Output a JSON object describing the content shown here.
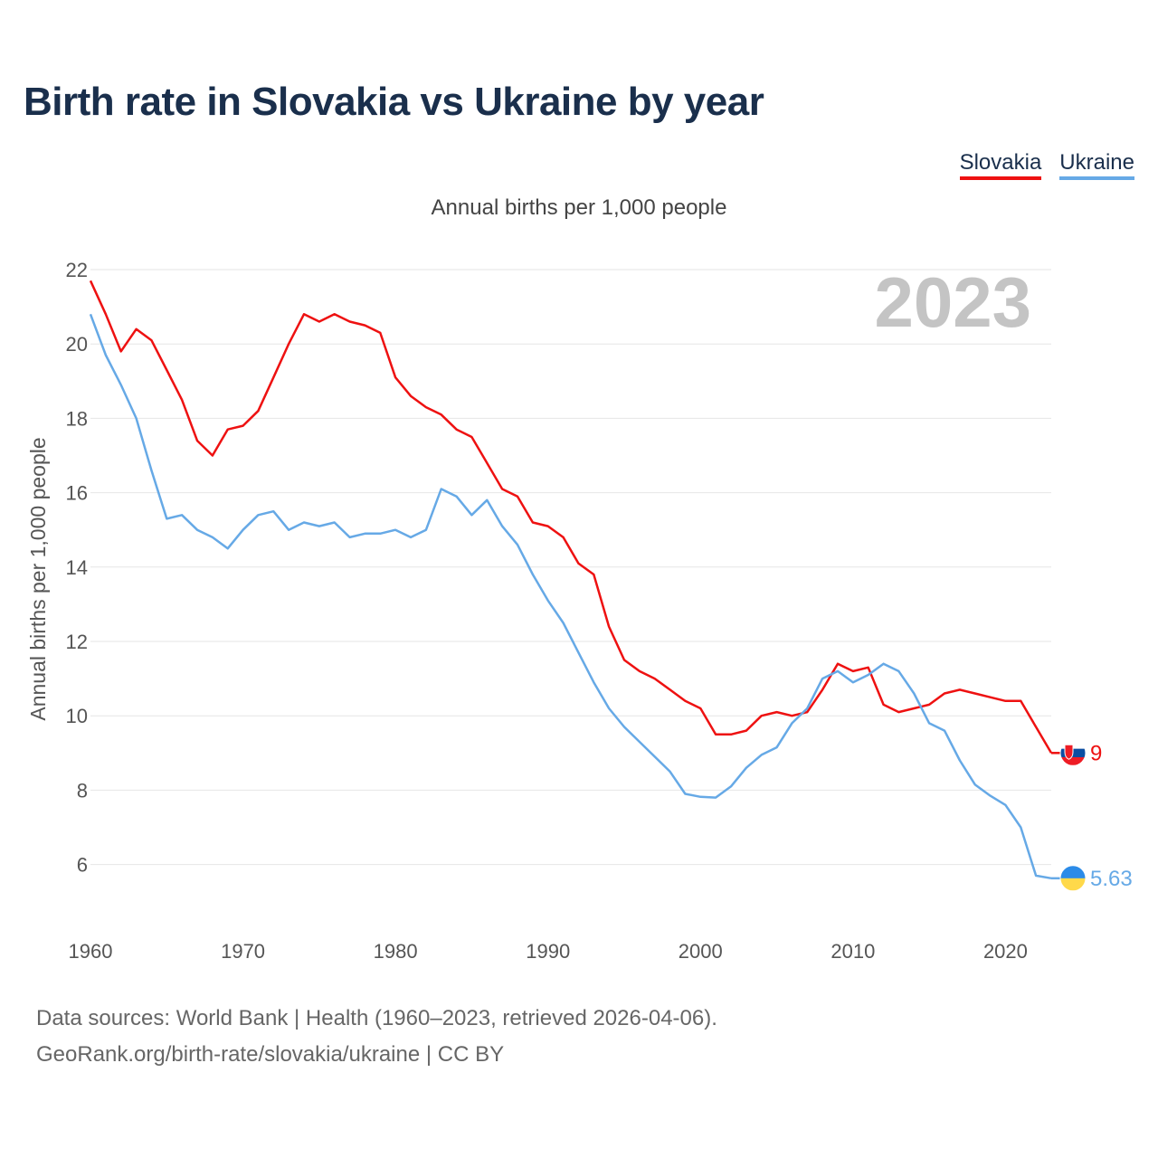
{
  "title": "Birth rate in Slovakia vs Ukraine by year",
  "subtitle": "Annual births per 1,000 people",
  "legend": {
    "items": [
      "Slovakia",
      "Ukraine"
    ]
  },
  "footer": {
    "line1": "Data sources: World Bank | Health (1960–2023, retrieved 2026-04-06).",
    "line2": "GeoRank.org/birth-rate/slovakia/ukraine | CC BY"
  },
  "chart_data": {
    "type": "line",
    "title": "Birth rate in Slovakia vs Ukraine by year",
    "subtitle": "Annual births per 1,000 people",
    "xlabel": "",
    "ylabel": "Annual births per 1,000 people",
    "year_label": "2023",
    "xlim": [
      1960,
      2023
    ],
    "ylim": [
      4.8,
      22.7
    ],
    "xticks": [
      1960,
      1970,
      1980,
      1990,
      2000,
      2010,
      2020
    ],
    "yticks": [
      6,
      8,
      10,
      12,
      14,
      16,
      18,
      20,
      22
    ],
    "grid": true,
    "legend_position": "top-right",
    "x": [
      1960,
      1961,
      1962,
      1963,
      1964,
      1965,
      1966,
      1967,
      1968,
      1969,
      1970,
      1971,
      1972,
      1973,
      1974,
      1975,
      1976,
      1977,
      1978,
      1979,
      1980,
      1981,
      1982,
      1983,
      1984,
      1985,
      1986,
      1987,
      1988,
      1989,
      1990,
      1991,
      1992,
      1993,
      1994,
      1995,
      1996,
      1997,
      1998,
      1999,
      2000,
      2001,
      2002,
      2003,
      2004,
      2005,
      2006,
      2007,
      2008,
      2009,
      2010,
      2011,
      2012,
      2013,
      2014,
      2015,
      2016,
      2017,
      2018,
      2019,
      2020,
      2021,
      2022,
      2023
    ],
    "series": [
      {
        "name": "Slovakia",
        "color": "#ee1111",
        "end_label": "9",
        "flag": "slovakia-flag-icon",
        "values": [
          21.7,
          20.8,
          19.8,
          20.4,
          20.1,
          19.3,
          18.5,
          17.4,
          17.0,
          17.7,
          17.8,
          18.2,
          19.1,
          20.0,
          20.8,
          20.6,
          20.8,
          20.6,
          20.5,
          20.3,
          19.1,
          18.6,
          18.3,
          18.1,
          17.7,
          17.5,
          16.8,
          16.1,
          15.9,
          15.2,
          15.1,
          14.8,
          14.1,
          13.8,
          12.4,
          11.5,
          11.2,
          11.0,
          10.7,
          10.4,
          10.2,
          9.5,
          9.5,
          9.6,
          10.0,
          10.1,
          10.0,
          10.1,
          10.7,
          11.4,
          11.2,
          11.3,
          10.3,
          10.1,
          10.2,
          10.3,
          10.6,
          10.7,
          10.6,
          10.5,
          10.4,
          10.4,
          9.7,
          9.0
        ]
      },
      {
        "name": "Ukraine",
        "color": "#66a9e6",
        "end_label": "5.63",
        "flag": "ukraine-flag-icon",
        "values": [
          20.8,
          19.7,
          18.9,
          18.0,
          16.6,
          15.3,
          15.4,
          15.0,
          14.8,
          14.5,
          15.0,
          15.4,
          15.5,
          15.0,
          15.2,
          15.1,
          15.2,
          14.8,
          14.9,
          14.9,
          15.0,
          14.8,
          15.0,
          16.1,
          15.9,
          15.4,
          15.8,
          15.1,
          14.6,
          13.8,
          13.1,
          12.5,
          11.7,
          10.9,
          10.2,
          9.7,
          9.3,
          8.9,
          8.5,
          7.9,
          7.82,
          7.8,
          8.1,
          8.6,
          8.95,
          9.15,
          9.8,
          10.2,
          11.0,
          11.2,
          10.9,
          11.1,
          11.4,
          11.2,
          10.6,
          9.8,
          9.6,
          8.8,
          8.15,
          7.85,
          7.6,
          7.0,
          5.7,
          5.63
        ]
      }
    ]
  }
}
